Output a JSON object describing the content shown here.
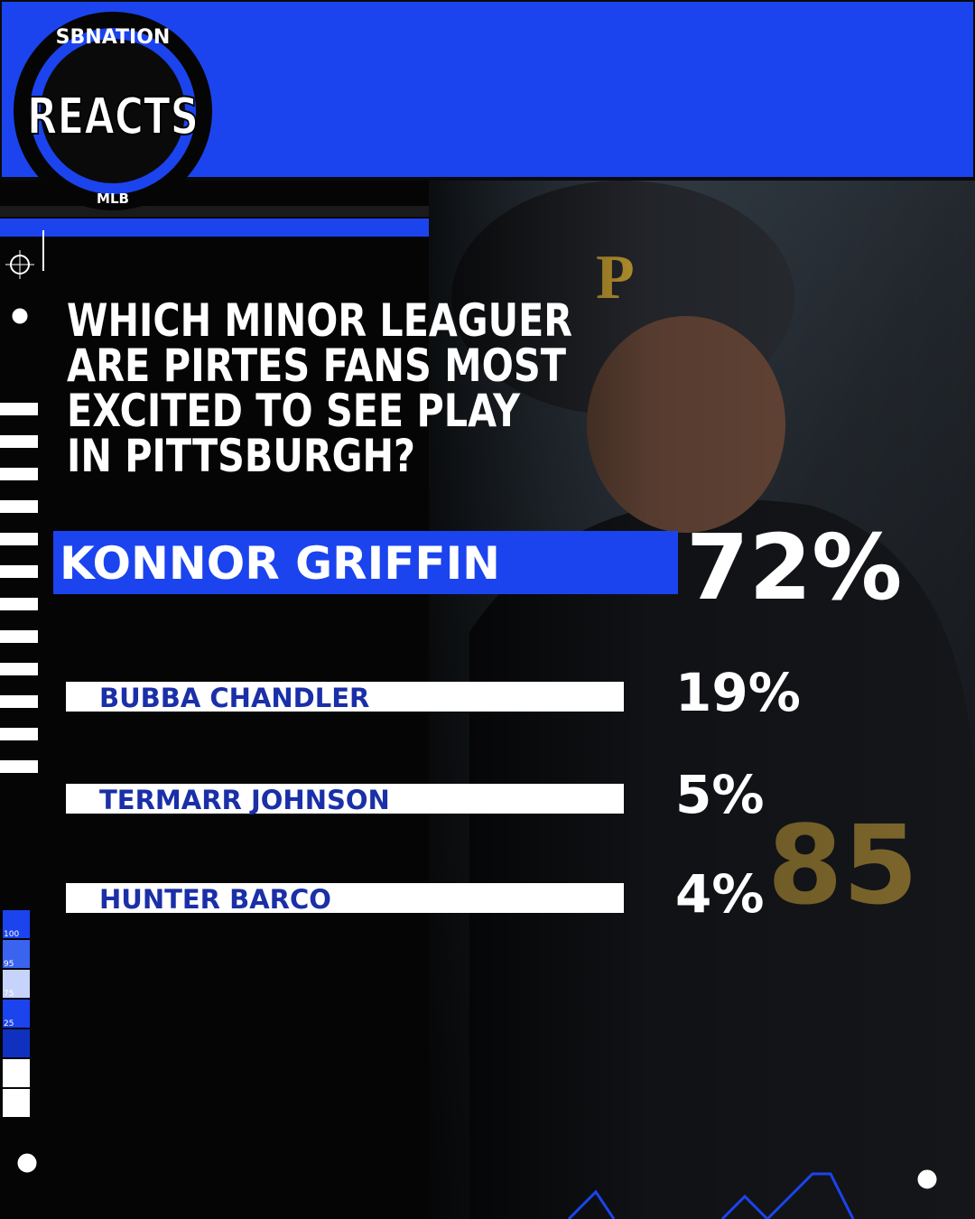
{
  "logo": {
    "top": "SBNATION",
    "main": "REACTS",
    "bottom": "MLB"
  },
  "question": [
    "WHICH MINOR LEAGUER",
    "ARE PIRTES FANS MOST",
    "EXCITED TO SEE PLAY",
    "IN PITTSBURGH?"
  ],
  "results": [
    {
      "name": "KONNOR GRIFFIN",
      "percent": "72%"
    },
    {
      "name": "BUBBA CHANDLER",
      "percent": "19%"
    },
    {
      "name": "TERMARR JOHNSON",
      "percent": "5%"
    },
    {
      "name": "HUNTER BARCO",
      "percent": "4%"
    }
  ],
  "side_scale": [
    "100",
    "95",
    "75",
    "25"
  ]
}
